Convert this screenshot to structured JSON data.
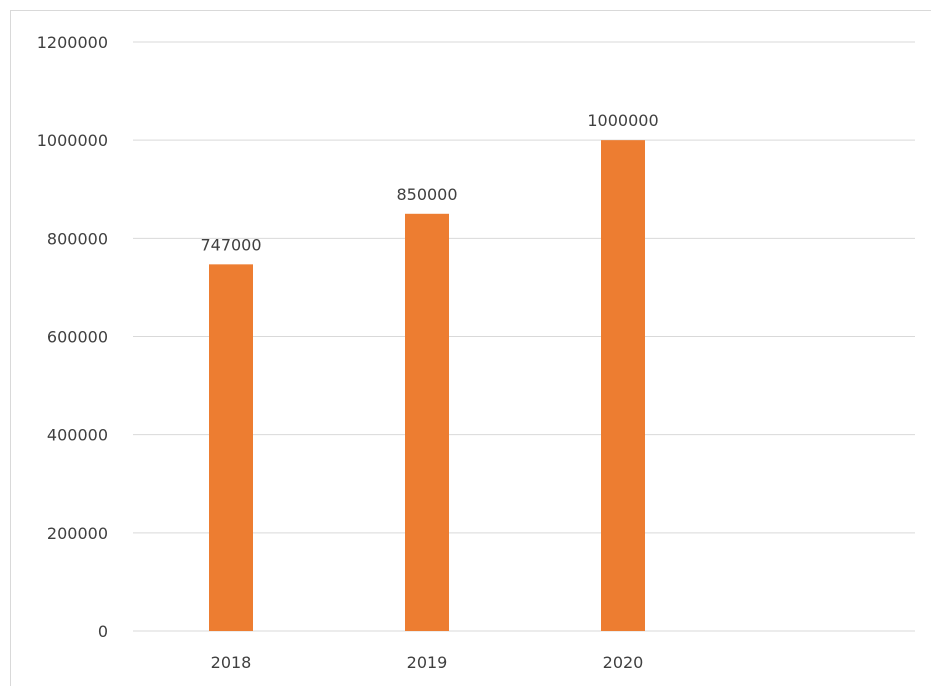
{
  "chart_data": {
    "type": "bar",
    "title": "",
    "xlabel": "",
    "ylabel": "",
    "categories": [
      "2018",
      "2019",
      "2020"
    ],
    "values": [
      747000,
      850000,
      1000000
    ],
    "data_labels": [
      "747000",
      "850000",
      "1000000"
    ],
    "y_ticks": [
      "0",
      "200000",
      "400000",
      "600000",
      "800000",
      "1000000",
      "1200000"
    ],
    "ylim": [
      0,
      1200000
    ],
    "grid": true,
    "legend": "none",
    "colors": {
      "bar": "#ED7D31",
      "grid": "#D9D9D9",
      "text": "#404040"
    }
  }
}
